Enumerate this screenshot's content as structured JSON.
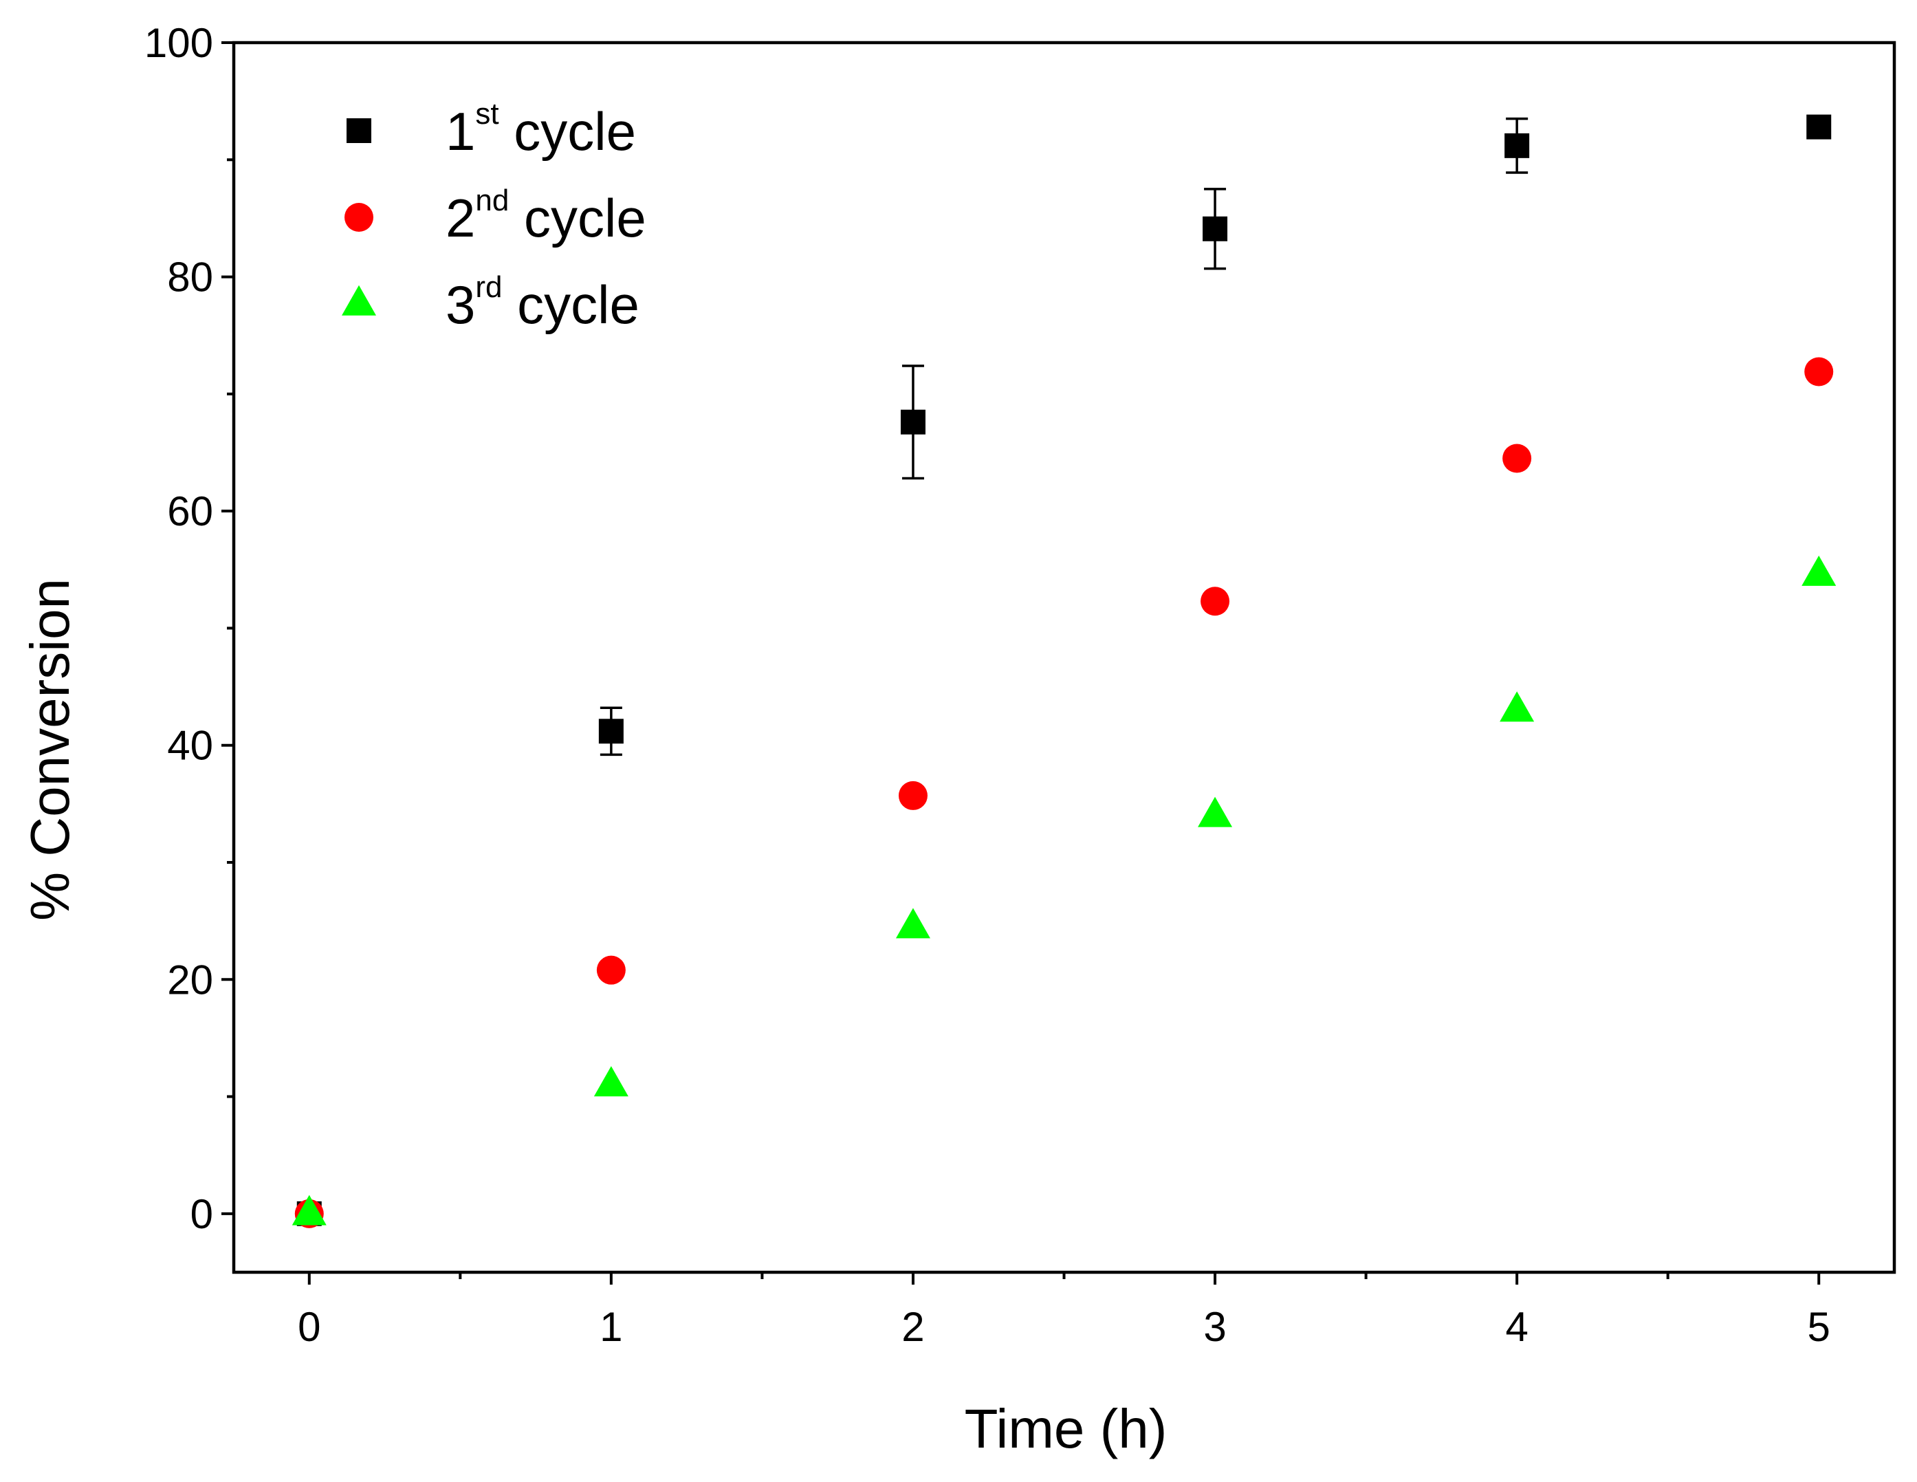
{
  "chart_data": {
    "type": "scatter",
    "title": "",
    "xlabel": "Time (h)",
    "ylabel": "% Conversion",
    "xlim": [
      -0.25,
      5.25
    ],
    "ylim": [
      -5,
      100
    ],
    "x_ticks": [
      0,
      1,
      2,
      3,
      4,
      5
    ],
    "x_tick_labels": [
      "0",
      "1",
      "2",
      "3",
      "4",
      "5"
    ],
    "y_ticks": [
      0,
      20,
      40,
      60,
      80,
      100
    ],
    "y_tick_labels": [
      "0",
      "20",
      "40",
      "60",
      "80",
      "100"
    ],
    "legend_position": "top-left",
    "series": [
      {
        "name": "1st cycle",
        "label_number": "1",
        "label_sup": "st",
        "label_text": "cycle",
        "marker": "square",
        "color": "#000000",
        "x": [
          0,
          1,
          2,
          3,
          4,
          5
        ],
        "values": [
          0,
          41.2,
          67.6,
          84.1,
          91.2,
          92.8
        ],
        "errors": [
          0,
          2.0,
          4.8,
          3.4,
          2.3,
          0
        ]
      },
      {
        "name": "2nd cycle",
        "label_number": "2",
        "label_sup": "nd",
        "label_text": "cycle",
        "marker": "circle",
        "color": "#ff0000",
        "x": [
          0,
          1,
          2,
          3,
          4,
          5
        ],
        "values": [
          0,
          20.8,
          35.7,
          52.3,
          64.5,
          71.9
        ]
      },
      {
        "name": "3rd cycle",
        "label_number": "3",
        "label_sup": "rd",
        "label_text": "cycle",
        "marker": "triangle",
        "color": "#00ff00",
        "x": [
          0,
          1,
          2,
          3,
          4,
          5
        ],
        "values": [
          0,
          11.0,
          24.5,
          34.0,
          43.0,
          54.6
        ]
      }
    ]
  }
}
